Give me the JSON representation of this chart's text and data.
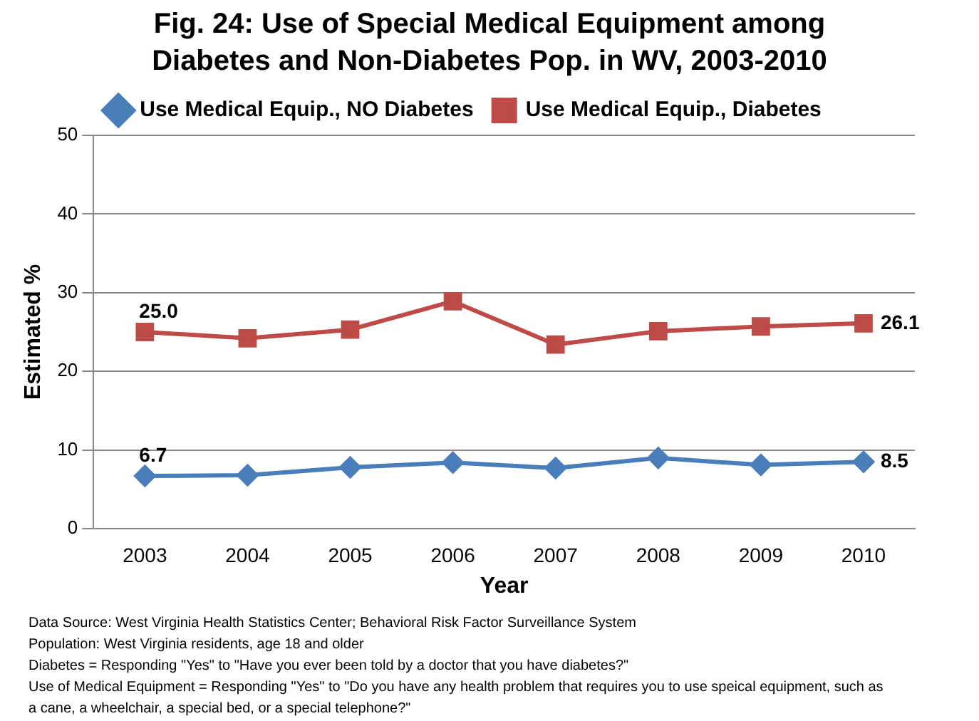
{
  "chart_data": {
    "type": "line",
    "title": "Fig. 24:  Use of Special Medical Equipment among Diabetes and Non-Diabetes Pop. in WV, 2003-2010",
    "xlabel": "Year",
    "ylabel": "Estimated %",
    "categories": [
      "2003",
      "2004",
      "2005",
      "2006",
      "2007",
      "2008",
      "2009",
      "2010"
    ],
    "series": [
      {
        "name": "Use Medical Equip., NO Diabetes",
        "color": "#4a7ebb",
        "marker": "diamond",
        "values": [
          6.7,
          6.8,
          7.8,
          8.4,
          7.7,
          9.0,
          8.1,
          8.5
        ],
        "value_labels": [
          "6.7",
          null,
          null,
          null,
          null,
          null,
          null,
          "8.5"
        ]
      },
      {
        "name": "Use Medical Equip., Diabetes",
        "color": "#be4b48",
        "marker": "square",
        "values": [
          25.0,
          24.2,
          25.3,
          28.9,
          23.4,
          25.1,
          25.7,
          26.1
        ],
        "value_labels": [
          "25.0",
          null,
          null,
          null,
          null,
          null,
          null,
          "26.1"
        ]
      }
    ],
    "ylim": [
      0,
      50
    ],
    "yticks": [
      0,
      10,
      20,
      30,
      40,
      50
    ],
    "grid": "y",
    "legend": "top",
    "annotations": [
      "Data Source:  West Virginia Health Statistics Center; Behavioral Risk Factor Surveillance System",
      "Population:  West Virginia residents, age 18 and older",
      "Diabetes = Responding \"Yes\" to \"Have you ever been told by a doctor that you have diabetes?\"",
      "Use of Medical Equipment = Responding \"Yes\" to \"Do you have any health problem that requires you to use speical equipment, such as a cane, a wheelchair, a special bed, or a special telephone?\""
    ]
  }
}
